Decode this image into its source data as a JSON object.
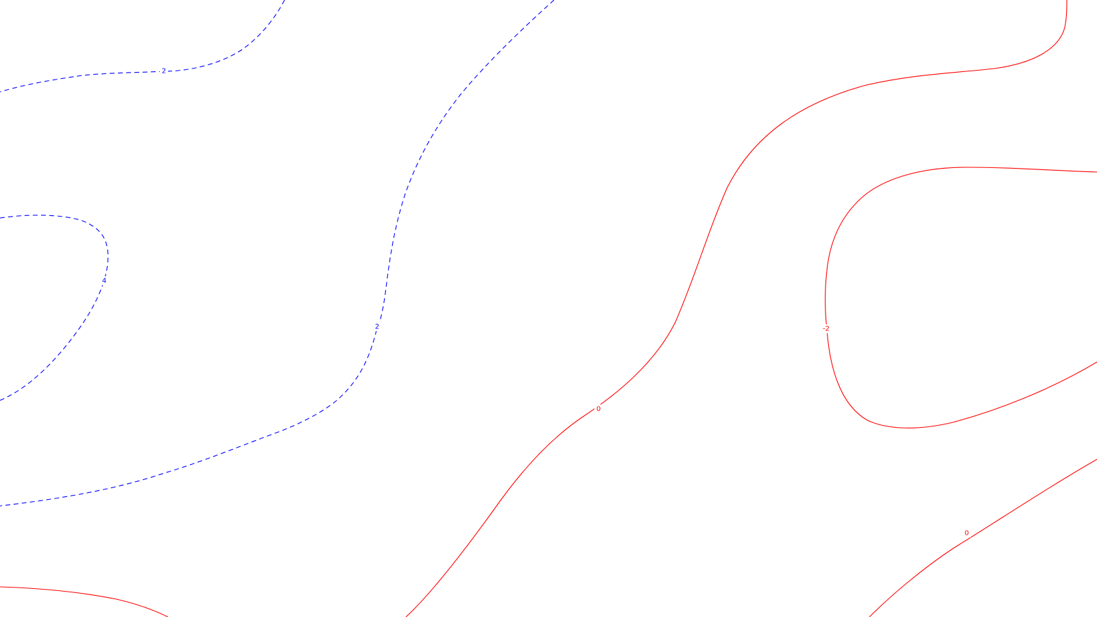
{
  "contour_map": {
    "colors": {
      "positive": "#0000ff",
      "negative": "#ff0000",
      "zero": "#ff0000",
      "background": "#ffffff"
    },
    "line_styles": {
      "positive": "dashed",
      "zero_and_negative": "solid"
    },
    "contours": [
      {
        "id": "pos-2-top",
        "level": 2,
        "label": "2",
        "color": "#0000ff",
        "style": "dashed"
      },
      {
        "id": "pos-2-mid",
        "level": 2,
        "label": "2",
        "color": "#0000ff",
        "style": "dashed"
      },
      {
        "id": "pos-4-left",
        "level": 4,
        "label": "4",
        "color": "#0000ff",
        "style": "dashed"
      },
      {
        "id": "zero-center",
        "level": 0,
        "label": "0",
        "color": "#ff0000",
        "style": "solid"
      },
      {
        "id": "neg-2-right",
        "level": -2,
        "label": "-2",
        "color": "#ff0000",
        "style": "solid"
      },
      {
        "id": "zero-lower-right",
        "level": 0,
        "label": "0",
        "color": "#ff0000",
        "style": "solid"
      },
      {
        "id": "bottom-left-arc",
        "level": null,
        "label": "",
        "color": "#ff0000",
        "style": "solid"
      }
    ]
  }
}
